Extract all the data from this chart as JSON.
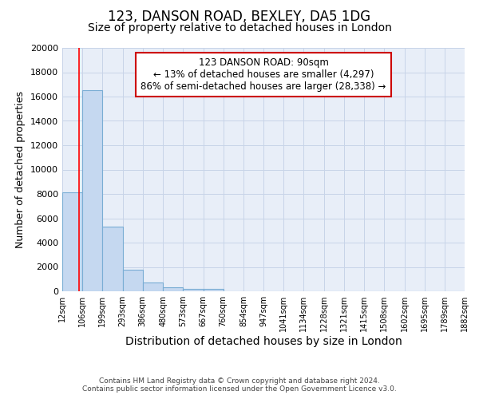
{
  "title": "123, DANSON ROAD, BEXLEY, DA5 1DG",
  "subtitle": "Size of property relative to detached houses in London",
  "xlabel": "Distribution of detached houses by size in London",
  "ylabel": "Number of detached properties",
  "annotation_title": "123 DANSON ROAD: 90sqm",
  "annotation_line1": "← 13% of detached houses are smaller (4,297)",
  "annotation_line2": "86% of semi-detached houses are larger (28,338) →",
  "footer_line1": "Contains HM Land Registry data © Crown copyright and database right 2024.",
  "footer_line2": "Contains public sector information licensed under the Open Government Licence v3.0.",
  "bar_edges": [
    12,
    106,
    199,
    293,
    386,
    480,
    573,
    667,
    760,
    854,
    947,
    1041,
    1134,
    1228,
    1321,
    1415,
    1508,
    1602,
    1695,
    1789,
    1882
  ],
  "bar_heights": [
    8100,
    16500,
    5300,
    1750,
    750,
    300,
    200,
    180,
    0,
    0,
    0,
    0,
    0,
    0,
    0,
    0,
    0,
    0,
    0,
    0
  ],
  "bar_color": "#c5d8f0",
  "bar_edge_color": "#7aadd4",
  "red_line_x": 90,
  "ylim": [
    0,
    20000
  ],
  "yticks": [
    0,
    2000,
    4000,
    6000,
    8000,
    10000,
    12000,
    14000,
    16000,
    18000,
    20000
  ],
  "xtick_labels": [
    "12sqm",
    "106sqm",
    "199sqm",
    "293sqm",
    "386sqm",
    "480sqm",
    "573sqm",
    "667sqm",
    "760sqm",
    "854sqm",
    "947sqm",
    "1041sqm",
    "1134sqm",
    "1228sqm",
    "1321sqm",
    "1415sqm",
    "1508sqm",
    "1602sqm",
    "1695sqm",
    "1789sqm",
    "1882sqm"
  ],
  "annotation_box_color": "#ffffff",
  "annotation_box_edge_color": "#cc0000",
  "grid_color": "#c8d4e8",
  "background_color": "#e8eef8",
  "title_fontsize": 12,
  "subtitle_fontsize": 10,
  "ylabel_fontsize": 9,
  "xlabel_fontsize": 10
}
